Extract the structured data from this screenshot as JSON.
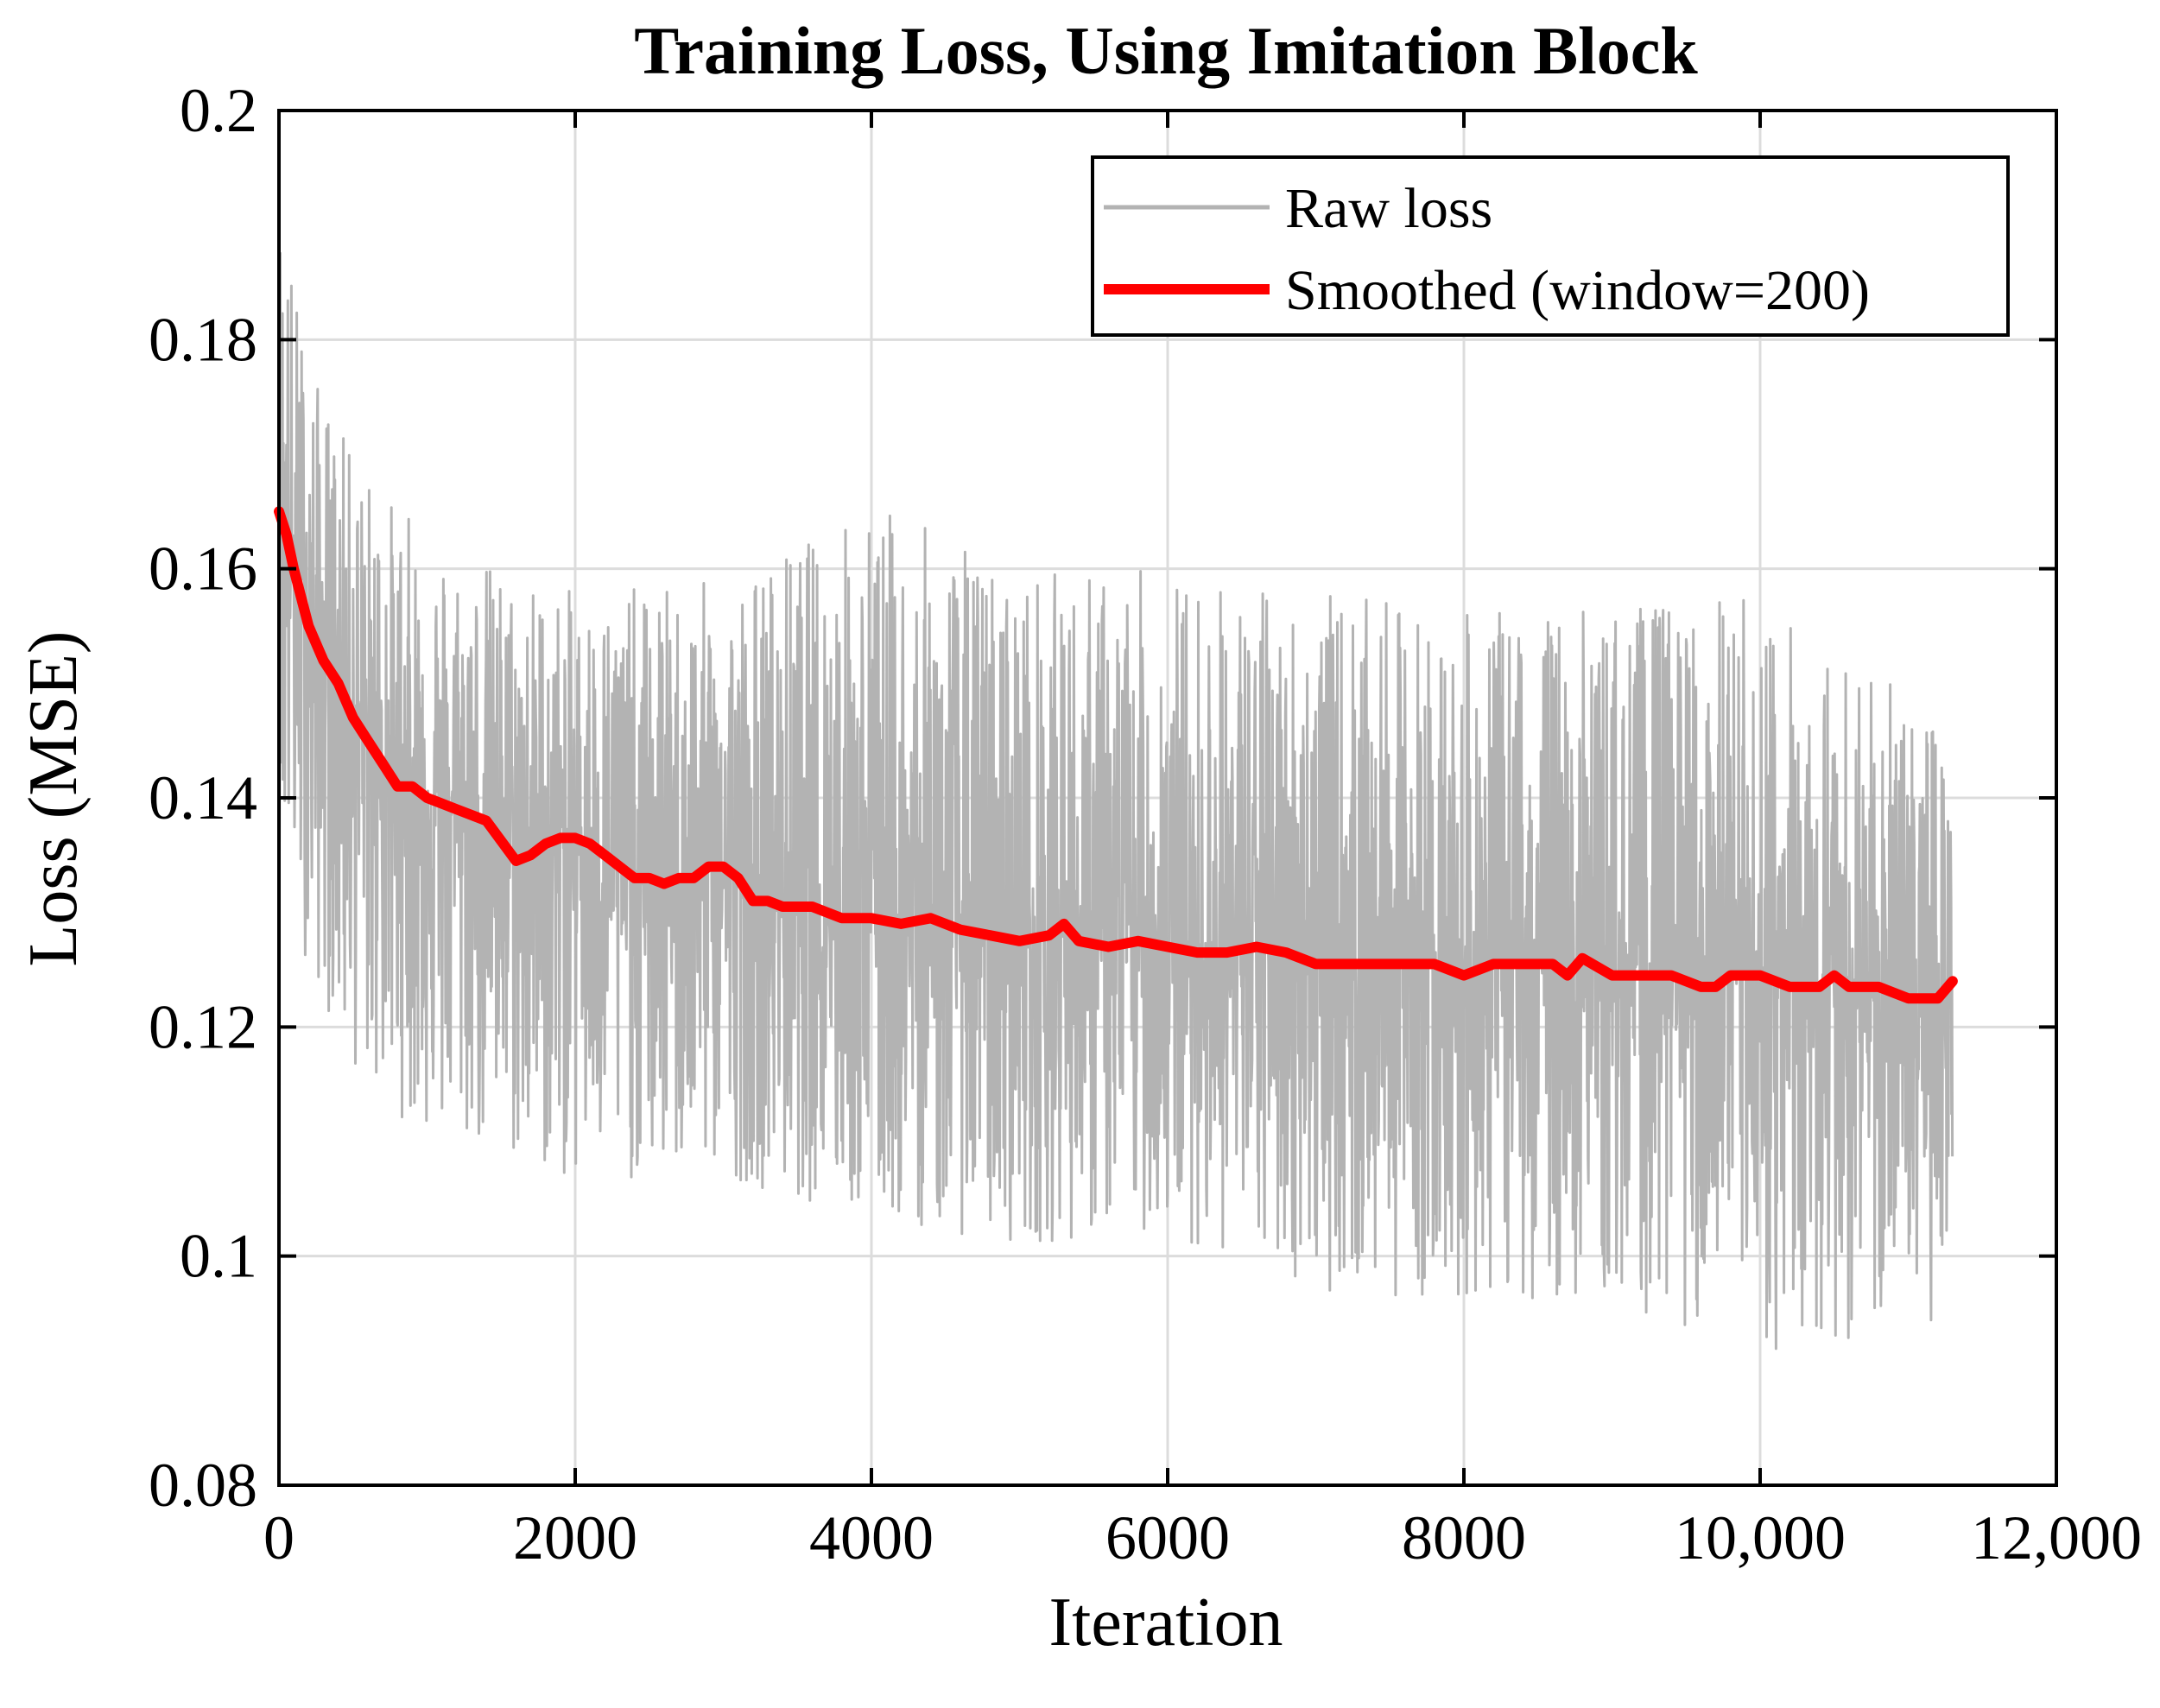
{
  "chart_data": {
    "type": "line",
    "title": "Training Loss, Using Imitation Block",
    "xlabel": "Iteration",
    "ylabel": "Loss (MSE)",
    "xlim": [
      0,
      12000
    ],
    "ylim": [
      0.08,
      0.2
    ],
    "xticks": [
      0,
      2000,
      4000,
      6000,
      8000,
      10000,
      12000
    ],
    "xtick_labels": [
      "0",
      "2000",
      "4000",
      "6000",
      "8000",
      "10,000",
      "12,000"
    ],
    "yticks": [
      0.08,
      0.1,
      0.12,
      0.14,
      0.16,
      0.18,
      0.2
    ],
    "ytick_labels": [
      "0.08",
      "0.1",
      "0.12",
      "0.14",
      "0.16",
      "0.18",
      "0.2"
    ],
    "grid": true,
    "legend_position": "top-right",
    "series": [
      {
        "name": "Raw loss",
        "color": "#b3b3b3",
        "num_points": 11300,
        "envelope": {
          "x": [
            0,
            200,
            500,
            1000,
            2000,
            3000,
            4000,
            5000,
            6000,
            7000,
            8000,
            9000,
            10000,
            11300
          ],
          "upper": [
            0.194,
            0.178,
            0.17,
            0.163,
            0.158,
            0.159,
            0.166,
            0.16,
            0.16,
            0.158,
            0.156,
            0.157,
            0.158,
            0.146
          ],
          "lower": [
            0.135,
            0.125,
            0.116,
            0.11,
            0.106,
            0.107,
            0.103,
            0.101,
            0.102,
            0.097,
            0.096,
            0.096,
            0.091,
            0.094
          ]
        }
      },
      {
        "name": "Smoothed (window=200)",
        "color": "#ff0000",
        "x": [
          0,
          50,
          100,
          200,
          300,
          400,
          500,
          600,
          700,
          800,
          900,
          1000,
          1200,
          1400,
          1600,
          1700,
          1800,
          1900,
          2000,
          2100,
          2200,
          2300,
          2400,
          2500,
          2600,
          2700,
          2800,
          2900,
          3000,
          3100,
          3200,
          3300,
          3400,
          3600,
          3800,
          4000,
          4200,
          4400,
          4600,
          4800,
          5000,
          5200,
          5300,
          5400,
          5600,
          5800,
          6000,
          6200,
          6400,
          6600,
          6800,
          7000,
          7200,
          7400,
          7600,
          7800,
          8000,
          8200,
          8400,
          8600,
          8700,
          8800,
          9000,
          9200,
          9400,
          9600,
          9700,
          9800,
          10000,
          10200,
          10400,
          10500,
          10600,
          10800,
          11000,
          11200,
          11300
        ],
        "y": [
          0.165,
          0.163,
          0.16,
          0.155,
          0.152,
          0.15,
          0.147,
          0.145,
          0.143,
          0.141,
          0.141,
          0.14,
          0.139,
          0.138,
          0.1345,
          0.135,
          0.136,
          0.1365,
          0.1365,
          0.136,
          0.135,
          0.134,
          0.133,
          0.133,
          0.1325,
          0.133,
          0.133,
          0.134,
          0.134,
          0.133,
          0.131,
          0.131,
          0.1305,
          0.1305,
          0.1295,
          0.1295,
          0.129,
          0.1295,
          0.1285,
          0.128,
          0.1275,
          0.128,
          0.129,
          0.1275,
          0.127,
          0.1275,
          0.127,
          0.1265,
          0.1265,
          0.127,
          0.1265,
          0.1255,
          0.1255,
          0.1255,
          0.1255,
          0.1255,
          0.1245,
          0.1255,
          0.1255,
          0.1255,
          0.1245,
          0.126,
          0.1245,
          0.1245,
          0.1245,
          0.1235,
          0.1235,
          0.1245,
          0.1245,
          0.1235,
          0.1235,
          0.1245,
          0.1235,
          0.1235,
          0.1225,
          0.1225,
          0.124
        ]
      }
    ]
  }
}
